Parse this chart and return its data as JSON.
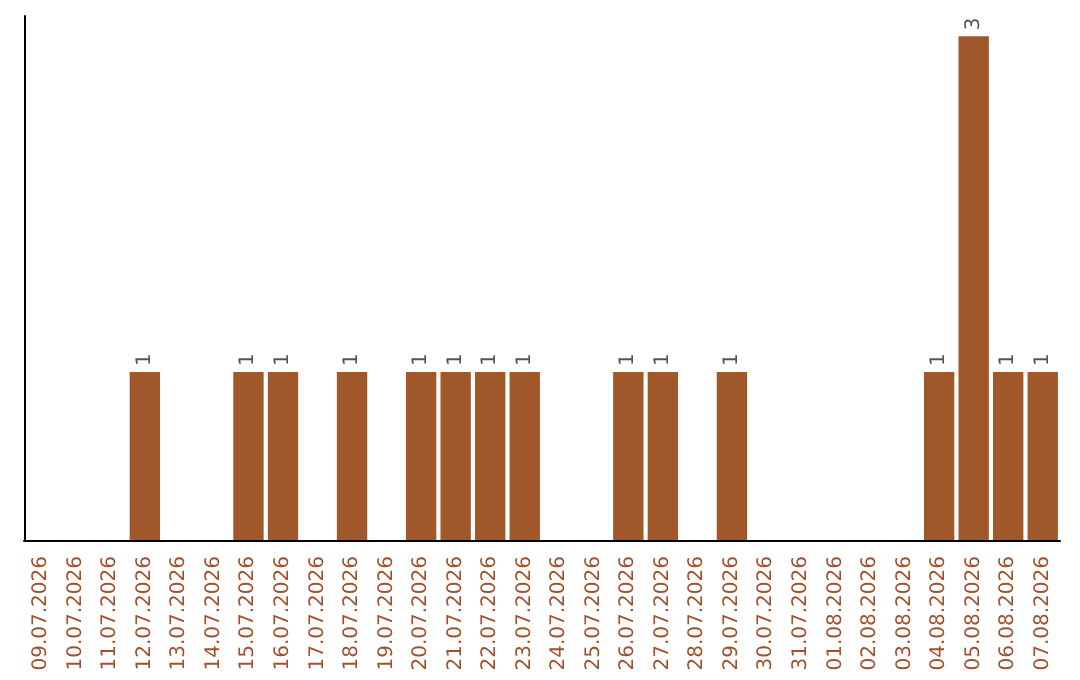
{
  "chart_data": {
    "type": "bar",
    "categories": [
      "09.07.2026",
      "10.07.2026",
      "11.07.2026",
      "12.07.2026",
      "13.07.2026",
      "14.07.2026",
      "15.07.2026",
      "16.07.2026",
      "17.07.2026",
      "18.07.2026",
      "19.07.2026",
      "20.07.2026",
      "21.07.2026",
      "22.07.2026",
      "23.07.2026",
      "24.07.2026",
      "25.07.2026",
      "26.07.2026",
      "27.07.2026",
      "28.07.2026",
      "29.07.2026",
      "30.07.2026",
      "31.07.2026",
      "01.08.2026",
      "02.08.2026",
      "03.08.2026",
      "04.08.2026",
      "05.08.2026",
      "06.08.2026",
      "07.08.2026"
    ],
    "values": [
      0,
      0,
      0,
      1,
      0,
      0,
      1,
      1,
      0,
      1,
      0,
      1,
      1,
      1,
      1,
      0,
      0,
      1,
      1,
      0,
      1,
      0,
      0,
      0,
      0,
      0,
      1,
      3,
      1,
      1
    ],
    "value_labels": [
      null,
      null,
      null,
      "1",
      null,
      null,
      "1",
      "1",
      null,
      "1",
      null,
      "1",
      "1",
      "1",
      "1",
      null,
      null,
      "1",
      "1",
      null,
      "1",
      null,
      null,
      null,
      null,
      null,
      "1",
      "3",
      "1",
      "1"
    ],
    "color": "#a0582a",
    "tick_labels": "x"
  }
}
